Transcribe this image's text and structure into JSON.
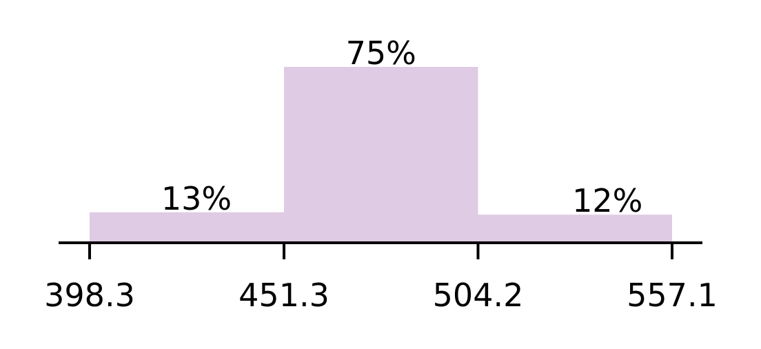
{
  "chart_data": {
    "type": "bar",
    "bins": [
      {
        "start": 398.3,
        "end": 451.3,
        "value": 13,
        "label": "13%"
      },
      {
        "start": 451.3,
        "end": 504.2,
        "value": 75,
        "label": "75%"
      },
      {
        "start": 504.2,
        "end": 557.1,
        "value": 12,
        "label": "12%"
      }
    ],
    "x_ticks": [
      "398.3",
      "451.3",
      "504.2",
      "557.1"
    ],
    "ylim": [
      0,
      75
    ],
    "grid": false,
    "colors": {
      "bar": "#dfcbe3",
      "axis": "#000000",
      "text": "#000000"
    }
  }
}
